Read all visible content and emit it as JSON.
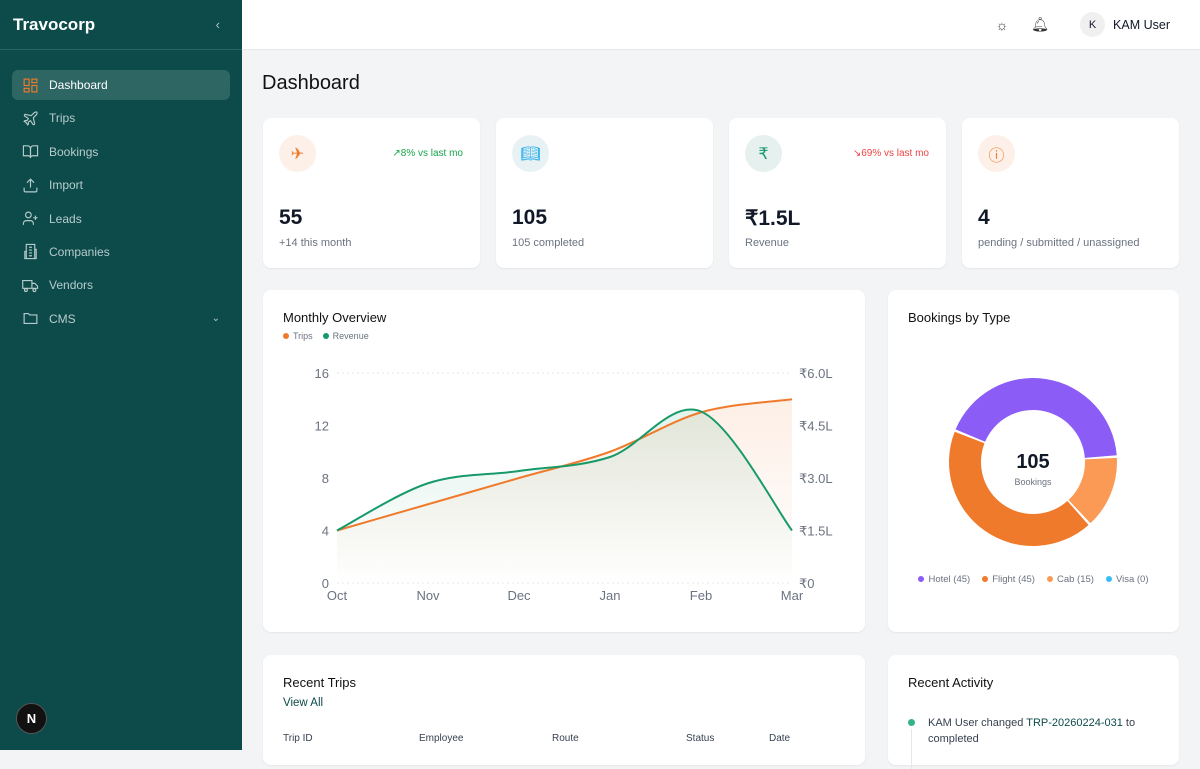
{
  "sidebar": {
    "brand": "Travocorp",
    "collapse_icon": "chevron-left-icon",
    "items": [
      {
        "label": "Dashboard",
        "icon": "layout-grid-icon",
        "active": true
      },
      {
        "label": "Trips",
        "icon": "plane-icon"
      },
      {
        "label": "Bookings",
        "icon": "book-open-icon"
      },
      {
        "label": "Import",
        "icon": "upload-icon"
      },
      {
        "label": "Leads",
        "icon": "user-plus-icon"
      },
      {
        "label": "Companies",
        "icon": "building-icon"
      },
      {
        "label": "Vendors",
        "icon": "truck-icon"
      },
      {
        "label": "CMS",
        "icon": "folder-icon"
      }
    ],
    "footer_logo": "N"
  },
  "topbar": {
    "user_initial": "K",
    "user_name": "KAM User"
  },
  "page_title": "Dashboard",
  "stats": [
    {
      "icon": "plane-icon",
      "value": "55",
      "sub": "+14 this month",
      "trend": "↗8% vs last mo",
      "trend_color": "#16a34a"
    },
    {
      "icon": "book-open-icon",
      "value": "105",
      "sub": "105 completed"
    },
    {
      "icon": "rupee-icon",
      "value": "₹1.5L",
      "sub": "Revenue",
      "trend": "↘69% vs last mo",
      "trend_color": "#ef4444"
    },
    {
      "icon": "alert-circle-icon",
      "value": "4",
      "sub": "pending / submitted / unassigned"
    }
  ],
  "monthly": {
    "title": "Monthly Overview",
    "legend": [
      "Trips",
      "Revenue"
    ]
  },
  "chart_data": [
    {
      "type": "line",
      "title": "Monthly Overview",
      "categories": [
        "Oct",
        "Nov",
        "Dec",
        "Jan",
        "Feb",
        "Mar"
      ],
      "series": [
        {
          "name": "Trips",
          "values": [
            4,
            6,
            8,
            10,
            13,
            14
          ],
          "color": "#f07a2b",
          "axis": "left"
        },
        {
          "name": "Revenue",
          "values": [
            1.5,
            2.85,
            3.2,
            3.6,
            4.9,
            1.5
          ],
          "unit": "₹L",
          "color": "#169a6a",
          "axis": "right"
        }
      ],
      "ylim": [
        0,
        16
      ],
      "yticks": [
        "0",
        "4",
        "8",
        "12",
        "16"
      ],
      "y2lim": [
        0,
        6
      ],
      "y2ticks": [
        "₹0",
        "₹1.5L",
        "₹3.0L",
        "₹4.5L",
        "₹6.0L"
      ],
      "grid": "top dashed",
      "legend": "top-left"
    },
    {
      "type": "pie",
      "title": "Bookings by Type",
      "center_value": "105",
      "center_label": "Bookings",
      "slices": [
        {
          "name": "Hotel",
          "value": 45,
          "label": "Hotel (45)",
          "color": "#8b5cf6"
        },
        {
          "name": "Cab",
          "value": 15,
          "label": "Cab (15)",
          "color": "#fb9a55"
        },
        {
          "name": "Flight",
          "value": 45,
          "label": "Flight (45)",
          "color": "#f07a2b"
        },
        {
          "name": "Visa",
          "value": 0,
          "label": "Visa (0)",
          "color": "#38bdf8"
        }
      ],
      "legend": "bottom"
    }
  ],
  "recent_trips": {
    "title": "Recent Trips",
    "view_all": "View All",
    "columns": [
      "Trip ID",
      "Employee",
      "Route",
      "Status",
      "Date"
    ]
  },
  "recent_activity": {
    "title": "Recent Activity",
    "items": [
      {
        "pre": "KAM User changed ",
        "link": "TRP-20260224-031",
        "post": " to completed"
      }
    ]
  }
}
